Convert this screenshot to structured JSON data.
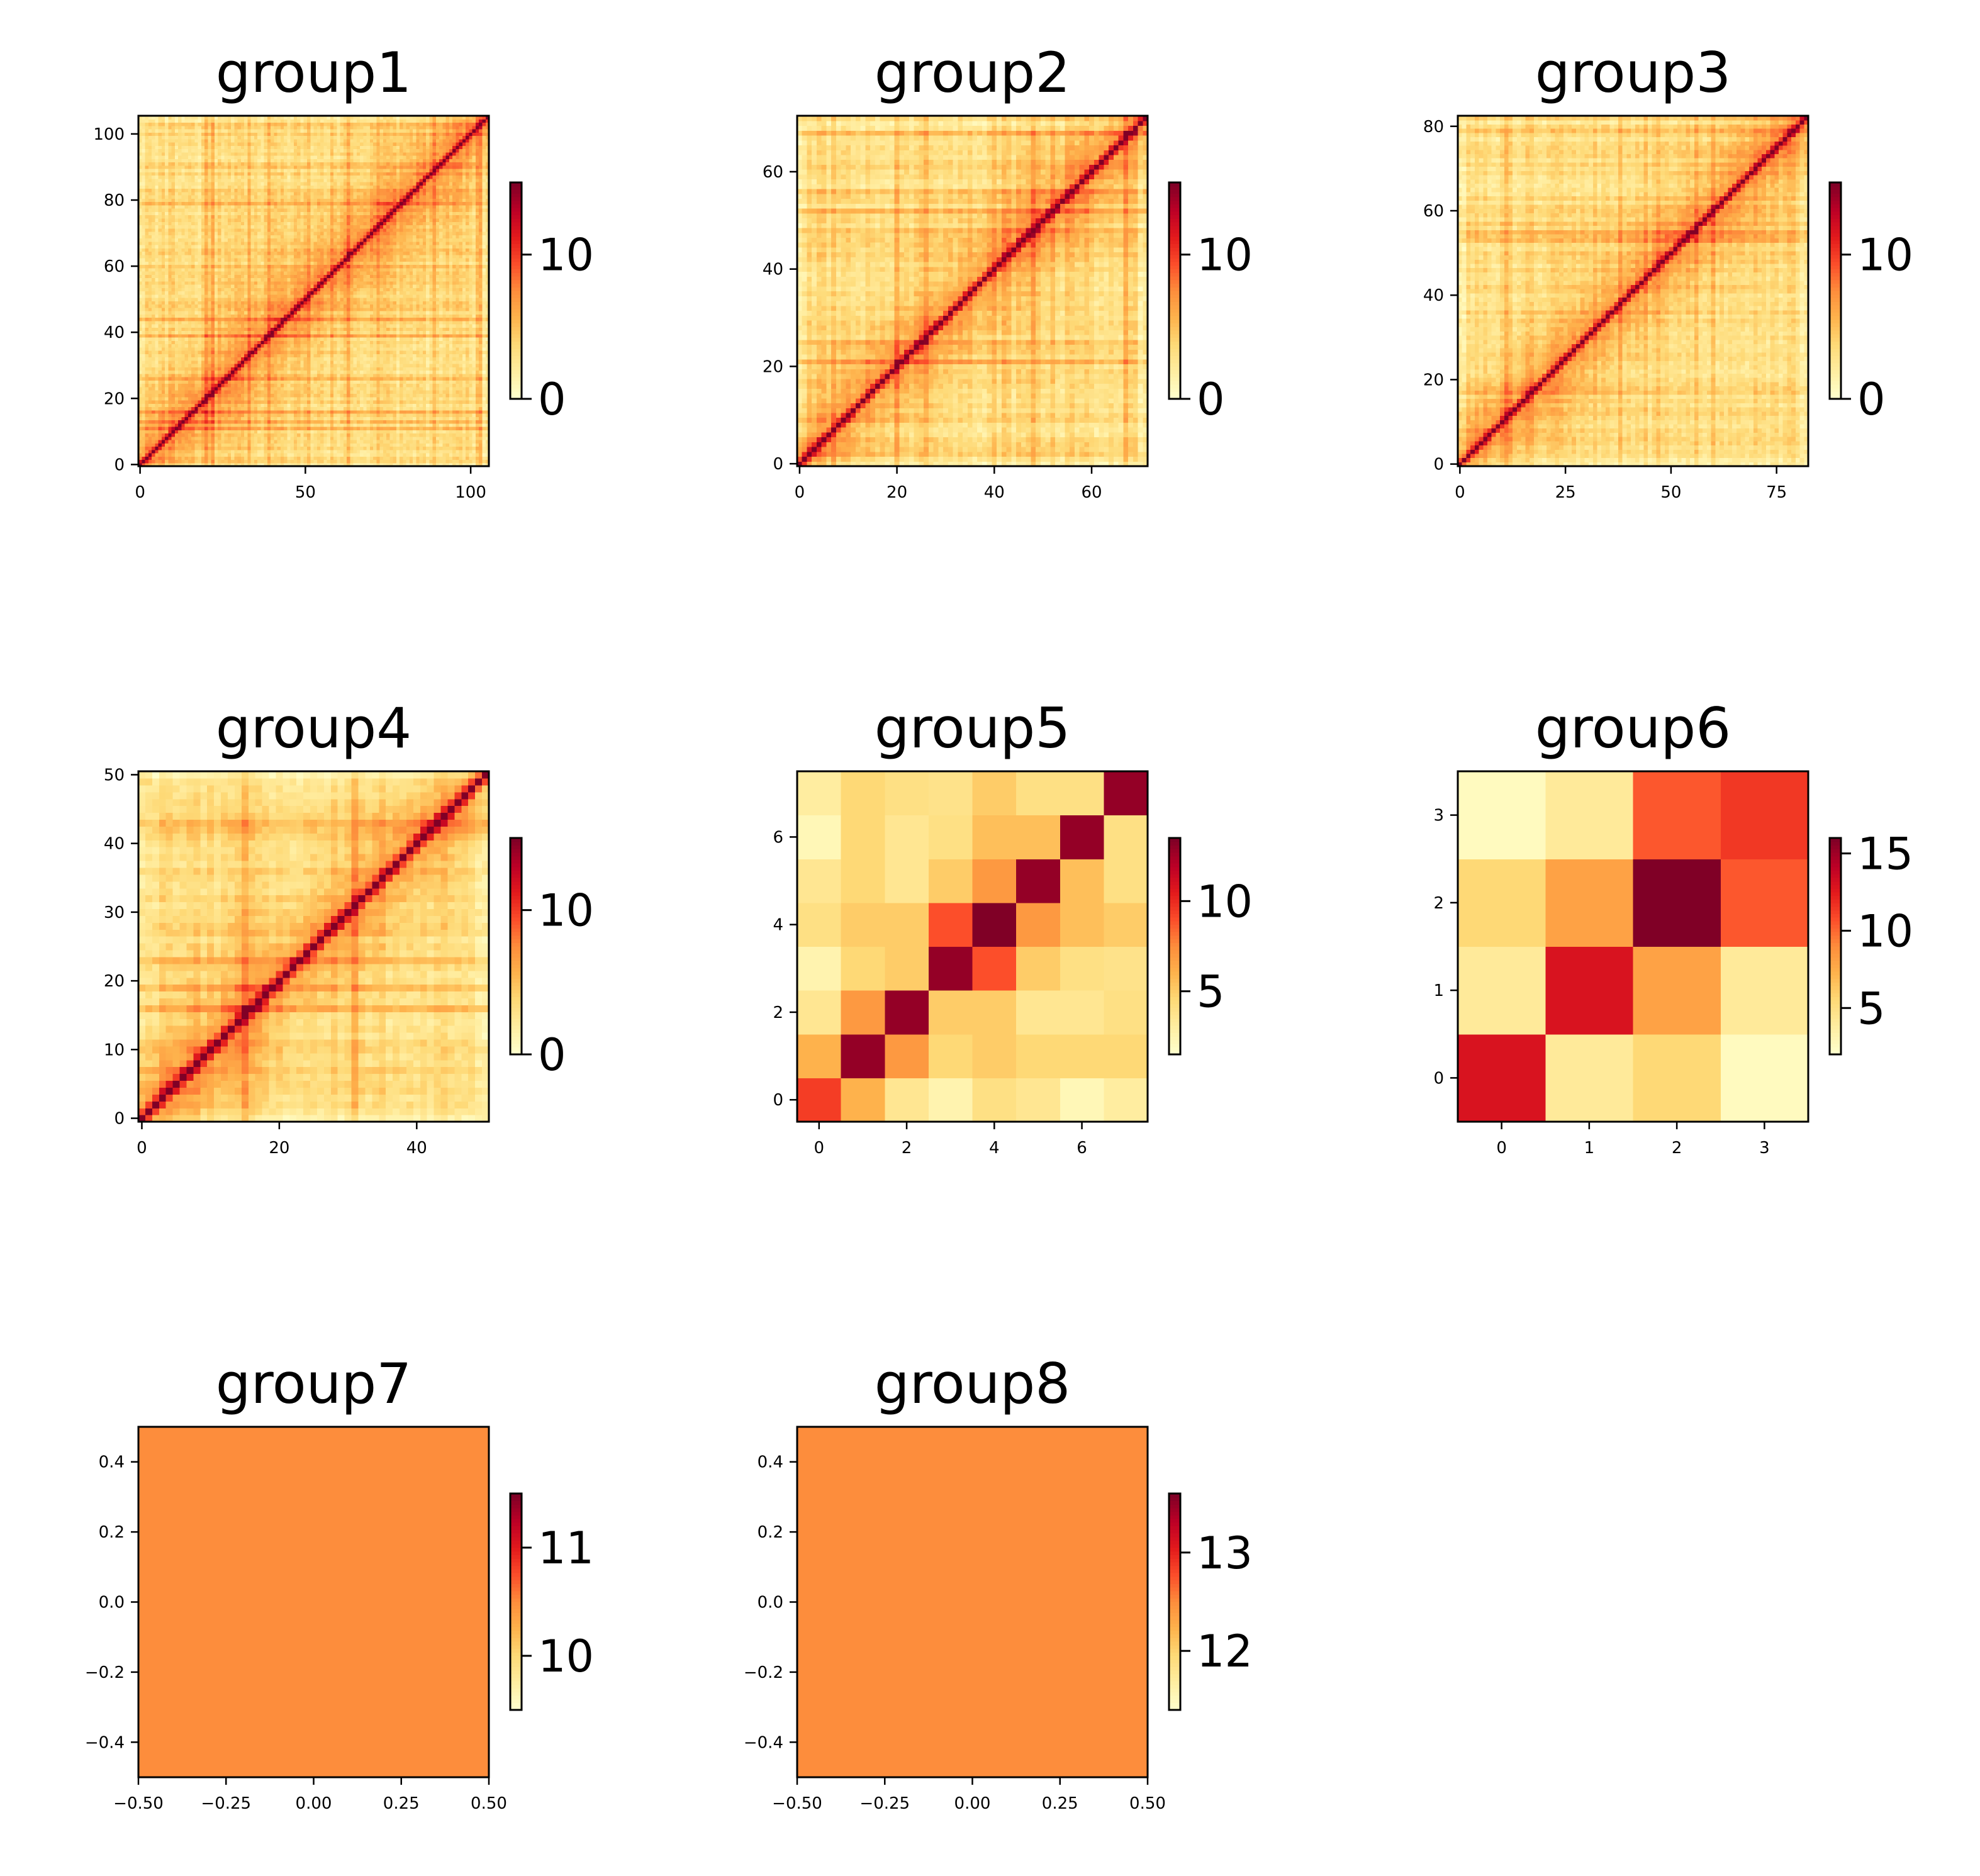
{
  "chart_data": [
    {
      "type": "heatmap",
      "title": "group1",
      "size": 106,
      "kind": "hic",
      "seed": 11,
      "xticks": [
        "0",
        "50",
        "100"
      ],
      "xtick_values": [
        0,
        50,
        100
      ],
      "yticks": [
        "0",
        "20",
        "40",
        "60",
        "80",
        "100"
      ],
      "ytick_values": [
        0,
        20,
        40,
        60,
        80,
        100
      ],
      "colorbar": {
        "min": 0,
        "max": 15,
        "ticks": [
          "0",
          "10"
        ],
        "tick_values": [
          0,
          10
        ]
      }
    },
    {
      "type": "heatmap",
      "title": "group2",
      "size": 72,
      "kind": "hic",
      "seed": 22,
      "xticks": [
        "0",
        "20",
        "40",
        "60"
      ],
      "xtick_values": [
        0,
        20,
        40,
        60
      ],
      "yticks": [
        "0",
        "20",
        "40",
        "60"
      ],
      "ytick_values": [
        0,
        20,
        40,
        60
      ],
      "colorbar": {
        "min": 0,
        "max": 15,
        "ticks": [
          "0",
          "10"
        ],
        "tick_values": [
          0,
          10
        ]
      }
    },
    {
      "type": "heatmap",
      "title": "group3",
      "size": 83,
      "kind": "hic",
      "seed": 33,
      "xticks": [
        "0",
        "25",
        "50",
        "75"
      ],
      "xtick_values": [
        0,
        25,
        50,
        75
      ],
      "yticks": [
        "0",
        "20",
        "40",
        "60",
        "80"
      ],
      "ytick_values": [
        0,
        20,
        40,
        60,
        80
      ],
      "colorbar": {
        "min": 0,
        "max": 15,
        "ticks": [
          "0",
          "10"
        ],
        "tick_values": [
          0,
          10
        ]
      }
    },
    {
      "type": "heatmap",
      "title": "group4",
      "size": 51,
      "kind": "hic",
      "seed": 44,
      "xticks": [
        "0",
        "20",
        "40"
      ],
      "xtick_values": [
        0,
        20,
        40
      ],
      "yticks": [
        "0",
        "10",
        "20",
        "30",
        "40",
        "50"
      ],
      "ytick_values": [
        0,
        10,
        20,
        30,
        40,
        50
      ],
      "colorbar": {
        "min": 0,
        "max": 15,
        "ticks": [
          "0",
          "10"
        ],
        "tick_values": [
          0,
          10
        ]
      }
    },
    {
      "type": "heatmap",
      "title": "group5",
      "size": 8,
      "kind": "matrix",
      "xticks": [
        "0",
        "2",
        "4",
        "6"
      ],
      "xtick_values": [
        0,
        2,
        4,
        6
      ],
      "yticks": [
        "0",
        "2",
        "4",
        "6"
      ],
      "ytick_values": [
        0,
        2,
        4,
        6
      ],
      "colorbar": {
        "min": 1.5,
        "max": 13.5,
        "ticks": [
          "5",
          "10"
        ],
        "tick_values": [
          5,
          10
        ]
      },
      "matrix": [
        [
          9.5,
          6.0,
          3.5,
          2.5,
          4.0,
          3.5,
          2.2,
          3.0
        ],
        [
          6.0,
          13.0,
          7.0,
          4.5,
          5.0,
          4.5,
          4.5,
          4.5
        ],
        [
          3.5,
          7.0,
          13.0,
          5.0,
          5.0,
          3.5,
          3.5,
          4.0
        ],
        [
          2.5,
          4.5,
          5.0,
          13.0,
          9.0,
          5.0,
          4.0,
          3.8
        ],
        [
          4.0,
          5.0,
          5.0,
          9.0,
          13.5,
          7.0,
          5.5,
          5.0
        ],
        [
          3.5,
          4.5,
          3.5,
          5.0,
          7.0,
          13.0,
          5.5,
          4.0
        ],
        [
          2.2,
          4.5,
          3.5,
          4.0,
          5.5,
          5.5,
          13.0,
          4.0
        ],
        [
          3.0,
          4.5,
          4.0,
          3.8,
          5.0,
          4.0,
          4.0,
          13.0
        ]
      ]
    },
    {
      "type": "heatmap",
      "title": "group6",
      "size": 4,
      "kind": "matrix",
      "xticks": [
        "0",
        "1",
        "2",
        "3"
      ],
      "xtick_values": [
        0,
        1,
        2,
        3
      ],
      "yticks": [
        "0",
        "1",
        "2",
        "3"
      ],
      "ytick_values": [
        0,
        1,
        2,
        3
      ],
      "colorbar": {
        "min": 2,
        "max": 16,
        "ticks": [
          "5",
          "10",
          "15"
        ],
        "tick_values": [
          5,
          10,
          15
        ]
      },
      "matrix": [
        [
          13.0,
          4.0,
          5.5,
          2.5
        ],
        [
          4.0,
          13.0,
          8.0,
          4.0
        ],
        [
          5.5,
          8.0,
          16.0,
          10.5
        ],
        [
          2.5,
          4.0,
          10.5,
          11.5
        ]
      ]
    },
    {
      "type": "heatmap",
      "title": "group7",
      "size": 1,
      "kind": "matrix",
      "xticks": [
        "−0.50",
        "−0.25",
        "0.00",
        "0.25",
        "0.50"
      ],
      "xtick_values": [
        -0.5,
        -0.25,
        0,
        0.25,
        0.5
      ],
      "yticks": [
        "−0.4",
        "−0.2",
        "0.0",
        "0.2",
        "0.4"
      ],
      "ytick_values": [
        -0.4,
        -0.2,
        0,
        0.2,
        0.4
      ],
      "colorbar": {
        "min": 9.5,
        "max": 11.5,
        "ticks": [
          "10",
          "11"
        ],
        "tick_values": [
          10,
          11
        ]
      },
      "matrix": [
        [
          10.5
        ]
      ]
    },
    {
      "type": "heatmap",
      "title": "group8",
      "size": 1,
      "kind": "matrix",
      "xticks": [
        "−0.50",
        "−0.25",
        "0.00",
        "0.25",
        "0.50"
      ],
      "xtick_values": [
        -0.5,
        -0.25,
        0,
        0.25,
        0.5
      ],
      "yticks": [
        "−0.4",
        "−0.2",
        "0.0",
        "0.2",
        "0.4"
      ],
      "ytick_values": [
        -0.4,
        -0.2,
        0,
        0.2,
        0.4
      ],
      "colorbar": {
        "min": 11.4,
        "max": 13.6,
        "ticks": [
          "12",
          "13"
        ],
        "tick_values": [
          12,
          13
        ]
      },
      "matrix": [
        [
          12.5
        ]
      ]
    }
  ],
  "colormap": {
    "name": "YlOrRd",
    "stops": [
      "#ffffcc",
      "#ffeda0",
      "#fed976",
      "#feb24c",
      "#fd8d3c",
      "#fc4e2a",
      "#e31a1c",
      "#bd0026",
      "#800026"
    ]
  }
}
